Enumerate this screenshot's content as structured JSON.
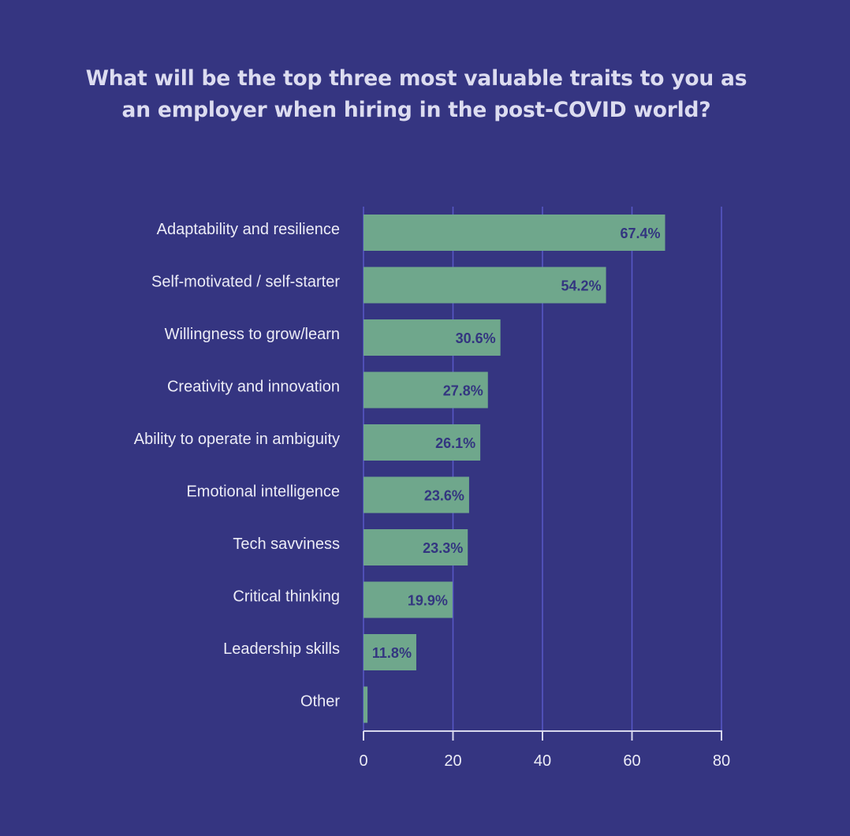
{
  "colors": {
    "background": "#353581",
    "bar": "#6fa78c",
    "gridline": "#5858c8",
    "axis": "#d8d8ee",
    "text": "#ececf6",
    "value_label": "#333580"
  },
  "chart_data": {
    "type": "bar",
    "orientation": "horizontal",
    "title_lines": [
      "What will be the top three most valuable traits to you as",
      "an employer when hiring in the post-COVID world?"
    ],
    "categories": [
      "Adaptability and resilience",
      "Self-motivated / self-starter",
      "Willingness to grow/learn",
      "Creativity and innovation",
      "Ability to operate in ambiguity",
      "Emotional intelligence",
      "Tech savviness",
      "Critical thinking",
      "Leadership skills",
      "Other"
    ],
    "values": [
      67.4,
      54.2,
      30.6,
      27.8,
      26.1,
      23.6,
      23.3,
      19.9,
      11.8,
      0.9
    ],
    "value_labels": [
      "67.4%",
      "54.2%",
      "30.6%",
      "27.8%",
      "26.1%",
      "23.6%",
      "23.3%",
      "19.9%",
      "11.8%",
      ""
    ],
    "xlabel": "",
    "ylabel": "",
    "xlim": [
      0,
      80
    ],
    "xticks": [
      0,
      20,
      40,
      60,
      80
    ],
    "xtick_labels": [
      "0",
      "20",
      "40",
      "60",
      "80"
    ],
    "grid": "vertical",
    "legend": "none"
  }
}
